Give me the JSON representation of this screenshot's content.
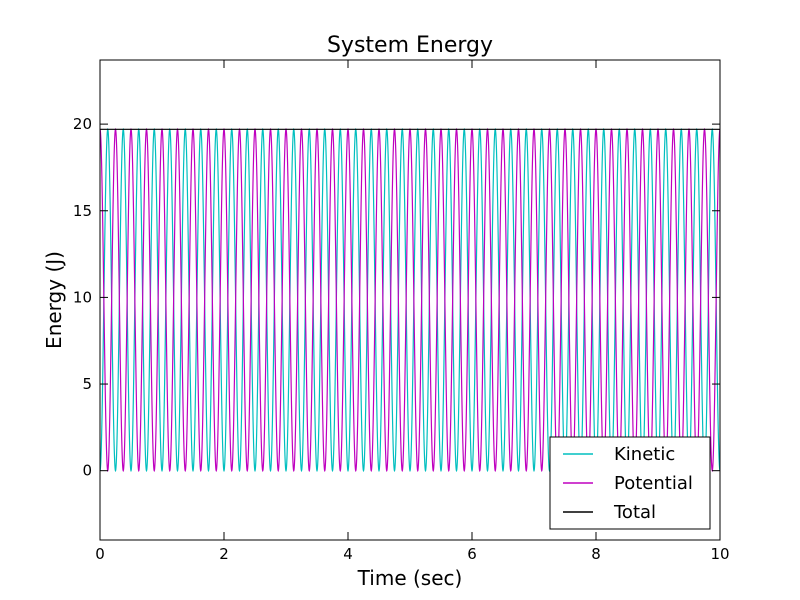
{
  "chart_data": {
    "type": "line",
    "title": "System Energy",
    "xlabel": "Time (sec)",
    "ylabel": "Energy (J)",
    "xlim": [
      0,
      10
    ],
    "ylim": [
      -4,
      23.7
    ],
    "x_ticks": [
      0,
      2,
      4,
      6,
      8,
      10
    ],
    "y_ticks": [
      0,
      5,
      10,
      15,
      20
    ],
    "x_tick_labels": [
      "0",
      "2",
      "4",
      "6",
      "8",
      "10"
    ],
    "y_tick_labels": [
      "0",
      "5",
      "10",
      "15",
      "20"
    ],
    "grid": false,
    "legend_position": "lower-right",
    "x_step": 0.01,
    "series": [
      {
        "name": "Kinetic",
        "color": "#00bfbf",
        "function": "total * sin^2(2*pi*t/0.5)",
        "total": 19.7,
        "oscillation_period_sec": 0.5,
        "samples": [
          [
            0,
            0
          ],
          [
            0.125,
            19.7
          ],
          [
            0.25,
            0
          ],
          [
            0.375,
            19.7
          ],
          [
            0.5,
            0
          ],
          [
            5.0,
            0
          ],
          [
            5.125,
            19.7
          ],
          [
            10,
            0
          ]
        ]
      },
      {
        "name": "Potential",
        "color": "#bf00bf",
        "function": "total * cos^2(2*pi*t/0.5)",
        "total": 19.7,
        "oscillation_period_sec": 0.5,
        "samples": [
          [
            0,
            19.7
          ],
          [
            0.125,
            0
          ],
          [
            0.25,
            19.7
          ],
          [
            0.375,
            0
          ],
          [
            0.5,
            19.7
          ],
          [
            5.0,
            19.7
          ],
          [
            5.125,
            0
          ],
          [
            10,
            19.7
          ]
        ]
      },
      {
        "name": "Total",
        "color": "#000000",
        "function": "constant",
        "total": 19.7,
        "samples": [
          [
            0,
            19.7
          ],
          [
            10,
            19.7
          ]
        ]
      }
    ]
  }
}
